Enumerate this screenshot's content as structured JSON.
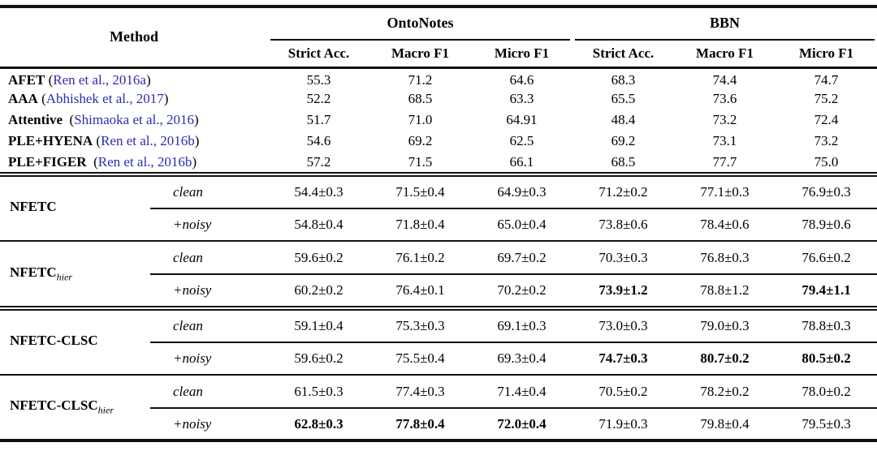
{
  "punctuation": {
    "open": "(",
    "close": ")"
  },
  "colors": {
    "citation_blue": "#2c2cb0",
    "rule": "#111111",
    "background": "#ffffff"
  },
  "header": {
    "method": "Method",
    "groups": [
      {
        "label": "OntoNotes"
      },
      {
        "label": "BBN"
      }
    ],
    "subcolumns": [
      "Strict Acc.",
      "Macro F1",
      "Micro F1",
      "Strict Acc.",
      "Macro F1",
      "Micro F1"
    ]
  },
  "baselines": [
    {
      "name": "AFET",
      "citation": "Ren et al., 2016a",
      "values": [
        "55.3",
        "71.2",
        "64.6",
        "68.3",
        "74.4",
        "74.7"
      ]
    },
    {
      "name": "AAA",
      "citation": "Abhishek et al., 2017",
      "values": [
        "52.2",
        "68.5",
        "63.3",
        "65.5",
        "73.6",
        "75.2"
      ]
    },
    {
      "name": "Attentive",
      "citation": "Shimaoka et al., 2016",
      "values": [
        "51.7",
        "71.0",
        "64.91",
        "48.4",
        "73.2",
        "72.4"
      ]
    },
    {
      "name": "PLE+HYENA",
      "citation": "Ren et al., 2016b",
      "values": [
        "54.6",
        "69.2",
        "62.5",
        "69.2",
        "73.1",
        "73.2"
      ]
    },
    {
      "name": "PLE+FIGER",
      "citation": "Ren et al., 2016b",
      "values": [
        "57.2",
        "71.5",
        "66.1",
        "68.5",
        "77.7",
        "75.0"
      ]
    }
  ],
  "blocks": [
    {
      "name": "NFETC",
      "subscript": "",
      "rows": [
        {
          "variant": "clean",
          "values": [
            "54.4±0.3",
            "71.5±0.4",
            "64.9±0.3",
            "71.2±0.2",
            "77.1±0.3",
            "76.9±0.3"
          ],
          "bold": [
            false,
            false,
            false,
            false,
            false,
            false
          ]
        },
        {
          "variant": "+noisy",
          "values": [
            "54.8±0.4",
            "71.8±0.4",
            "65.0±0.4",
            "73.8±0.6",
            "78.4±0.6",
            "78.9±0.6"
          ],
          "bold": [
            false,
            false,
            false,
            false,
            false,
            false
          ]
        }
      ]
    },
    {
      "name": "NFETC",
      "subscript": "hier",
      "rows": [
        {
          "variant": "clean",
          "values": [
            "59.6±0.2",
            "76.1±0.2",
            "69.7±0.2",
            "70.3±0.3",
            "76.8±0.3",
            "76.6±0.2"
          ],
          "bold": [
            false,
            false,
            false,
            false,
            false,
            false
          ]
        },
        {
          "variant": "+noisy",
          "values": [
            "60.2±0.2",
            "76.4±0.1",
            "70.2±0.2",
            "73.9±1.2",
            "78.8±1.2",
            "79.4±1.1"
          ],
          "bold": [
            false,
            false,
            false,
            true,
            false,
            true
          ]
        }
      ]
    },
    {
      "name": "NFETC-CLSC",
      "subscript": "",
      "rows": [
        {
          "variant": "clean",
          "values": [
            "59.1±0.4",
            "75.3±0.3",
            "69.1±0.3",
            "73.0±0.3",
            "79.0±0.3",
            "78.8±0.3"
          ],
          "bold": [
            false,
            false,
            false,
            false,
            false,
            false
          ]
        },
        {
          "variant": "+noisy",
          "values": [
            "59.6±0.2",
            "75.5±0.4",
            "69.3±0.4",
            "74.7±0.3",
            "80.7±0.2",
            "80.5±0.2"
          ],
          "bold": [
            false,
            false,
            false,
            true,
            true,
            true
          ]
        }
      ]
    },
    {
      "name": "NFETC-CLSC",
      "subscript": "hier",
      "rows": [
        {
          "variant": "clean",
          "values": [
            "61.5±0.3",
            "77.4±0.3",
            "71.4±0.4",
            "70.5±0.2",
            "78.2±0.2",
            "78.0±0.2"
          ],
          "bold": [
            false,
            false,
            false,
            false,
            false,
            false
          ]
        },
        {
          "variant": "+noisy",
          "values": [
            "62.8±0.3",
            "77.8±0.4",
            "72.0±0.4",
            "71.9±0.3",
            "79.8±0.4",
            "79.5±0.3"
          ],
          "bold": [
            true,
            true,
            true,
            false,
            false,
            false
          ]
        }
      ]
    }
  ]
}
